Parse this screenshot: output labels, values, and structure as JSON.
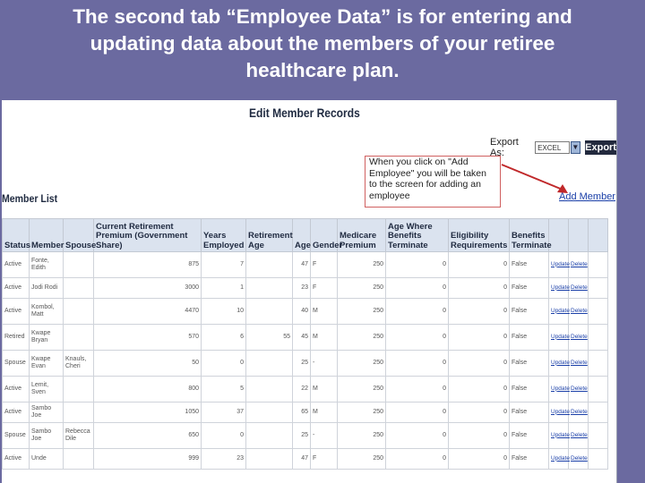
{
  "slide": {
    "title_lines": [
      "The second tab “Employee Data” is for entering and",
      "updating data about the members of your retiree",
      "healthcare plan."
    ]
  },
  "page": {
    "title": "Edit Member Records",
    "export_label": "Export As:",
    "export_format": "EXCEL",
    "export_button": "Export",
    "callout": "When you click on \"Add Employee\" you will be taken to the screen for adding an employee",
    "add_member_link": "Add Member",
    "list_title": "Member List"
  },
  "table": {
    "headers": [
      "Status",
      "Member",
      "Spouse",
      "Current Retirement Premium (Government Share)",
      "Years Employed",
      "Retirement Age",
      "Age",
      "Gender",
      "Medicare Premium",
      "Age Where Benefits Terminate",
      "Eligibility Requirements",
      "Benefits Terminate",
      "",
      "",
      ""
    ],
    "rows": [
      [
        "Active",
        "Fonte, Edith",
        "",
        "875",
        "7",
        "",
        "47",
        "F",
        "250",
        "0",
        "0",
        "False",
        "Update",
        "Delete"
      ],
      [
        "Active",
        "Jodi Rodi",
        "",
        "3000",
        "1",
        "",
        "23",
        "F",
        "250",
        "0",
        "0",
        "False",
        "Update",
        "Delete"
      ],
      [
        "Active",
        "Kombol, Matt",
        "",
        "4470",
        "10",
        "",
        "40",
        "M",
        "250",
        "0",
        "0",
        "False",
        "Update",
        "Delete"
      ],
      [
        "Retired",
        "Kwape Bryan",
        "",
        "570",
        "6",
        "55",
        "45",
        "M",
        "250",
        "0",
        "0",
        "False",
        "Update",
        "Delete"
      ],
      [
        "Spouse",
        "Kwape Evan",
        "Knauls, Cheri",
        "50",
        "0",
        "",
        "25",
        "-",
        "250",
        "0",
        "0",
        "False",
        "Update",
        "Delete"
      ],
      [
        "Active",
        "Lemit, Sven",
        "",
        "800",
        "5",
        "",
        "22",
        "M",
        "250",
        "0",
        "0",
        "False",
        "Update",
        "Delete"
      ],
      [
        "Active",
        "Sambo Joe",
        "",
        "1050",
        "37",
        "",
        "65",
        "M",
        "250",
        "0",
        "0",
        "False",
        "Update",
        "Delete"
      ],
      [
        "Spouse",
        "Sambo Joe",
        "Rebecca Dile",
        "650",
        "0",
        "",
        "25",
        "-",
        "250",
        "0",
        "0",
        "False",
        "Update",
        "Delete"
      ],
      [
        "Active",
        "Unde",
        "",
        "999",
        "23",
        "",
        "47",
        "F",
        "250",
        "0",
        "0",
        "False",
        "Update",
        "Delete"
      ]
    ]
  }
}
